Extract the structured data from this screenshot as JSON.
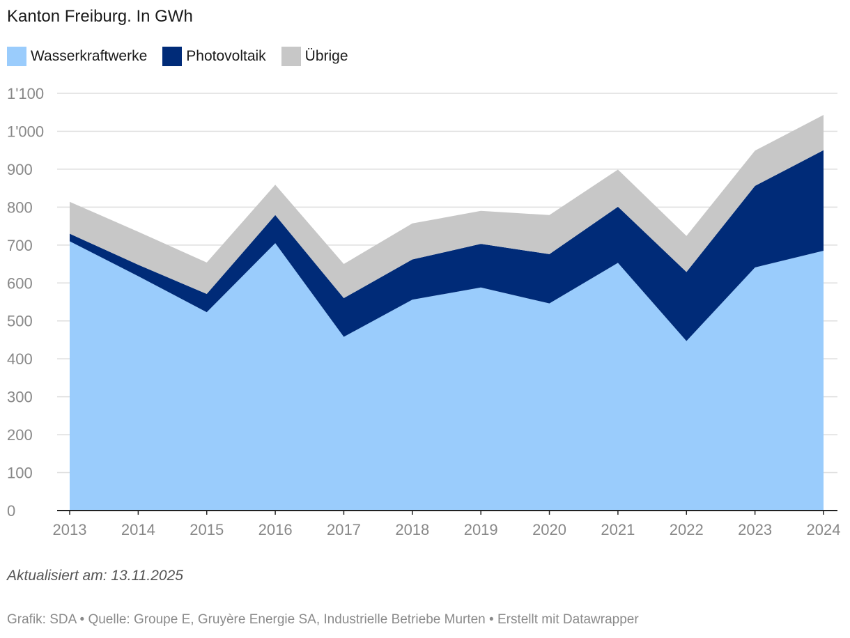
{
  "title": "Kanton Freiburg. In GWh",
  "legend": [
    {
      "name": "Wasserkraftwerke",
      "color": "#9accfc"
    },
    {
      "name": "Photovoltaik",
      "color": "#002b78"
    },
    {
      "name": "Übrige",
      "color": "#c7c7c7"
    }
  ],
  "chart_data": {
    "type": "area",
    "stacked": true,
    "x": [
      "2013",
      "2014",
      "2015",
      "2016",
      "2017",
      "2018",
      "2019",
      "2020",
      "2021",
      "2022",
      "2023",
      "2024"
    ],
    "series": [
      {
        "name": "Wasserkraftwerke",
        "color": "#9accfc",
        "values": [
          710,
          618,
          523,
          705,
          458,
          556,
          588,
          546,
          653,
          447,
          641,
          685
        ]
      },
      {
        "name": "Photovoltaik",
        "color": "#002b78",
        "values": [
          20,
          30,
          48,
          74,
          102,
          106,
          115,
          130,
          148,
          182,
          215,
          265
        ]
      },
      {
        "name": "Übrige",
        "color": "#c7c7c7",
        "values": [
          84,
          87,
          83,
          80,
          90,
          95,
          87,
          103,
          98,
          95,
          93,
          93
        ]
      }
    ],
    "ylim": [
      0,
      1100
    ],
    "yticks": [
      0,
      100,
      200,
      300,
      400,
      500,
      600,
      700,
      800,
      900,
      1000,
      1100
    ],
    "ytick_labels": [
      "0",
      "100",
      "200",
      "300",
      "400",
      "500",
      "600",
      "700",
      "800",
      "900",
      "1'000",
      "1'100"
    ],
    "grid": true,
    "legend_position": "top-left"
  },
  "updated": "Aktualisiert am: 13.11.2025",
  "footer": "Grafik: SDA • Quelle: Groupe E, Gruyère Energie SA, Industrielle Betriebe Murten • Erstellt mit Datawrapper"
}
